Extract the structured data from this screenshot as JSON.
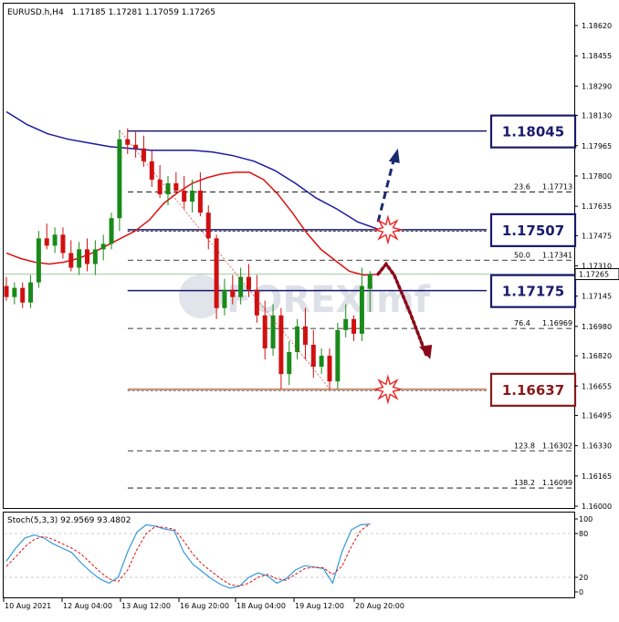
{
  "header": {
    "symbol": "EURUSD.h,H4",
    "ohlc": "1.17185 1.17281 1.17059 1.17265"
  },
  "current_price_label": "1.17265",
  "colors": {
    "bull": "#1a8a1a",
    "bear": "#d01010",
    "ma_fast": "#dd1111",
    "ma_slow": "#1a1aa0",
    "level_box": "#1a1a6e",
    "support_box": "#8a1a1a",
    "stoch_main": "#3399dd",
    "stoch_signal": "#dd1111",
    "up_arrow": "#1a2a6e",
    "down_arrow": "#8a0a1a",
    "burst": "#ee2222"
  },
  "levels": [
    {
      "label": "1.18045",
      "value": 1.18045,
      "kind": "resistance"
    },
    {
      "label": "1.17507",
      "value": 1.17507,
      "kind": "resistance"
    },
    {
      "label": "1.17175",
      "value": 1.17175,
      "kind": "pivot"
    },
    {
      "label": "1.16637",
      "value": 1.16637,
      "kind": "support"
    }
  ],
  "fibonacci": [
    {
      "label": "23.6",
      "price": "1.17713",
      "value": 1.17713
    },
    {
      "label": "50.0",
      "price": "1.17341",
      "value": 1.17341
    },
    {
      "label": "76.4",
      "price": "1.16969",
      "value": 1.16969
    },
    {
      "label": "123.8",
      "price": "1.16302",
      "value": 1.16302
    },
    {
      "label": "138.2",
      "price": "1.16099",
      "value": 1.16099
    }
  ],
  "watermark": "FOREXimf",
  "stochastic": {
    "label": "Stoch(5,3,3) 92.9569 93.4802",
    "ticks": [
      "100",
      "80",
      "20",
      "0"
    ],
    "main": [
      42,
      60,
      74,
      78,
      74,
      66,
      60,
      54,
      40,
      28,
      18,
      12,
      20,
      55,
      82,
      92,
      90,
      86,
      84,
      55,
      38,
      28,
      18,
      10,
      5,
      8,
      20,
      26,
      22,
      12,
      18,
      30,
      36,
      34,
      32,
      12,
      55,
      85,
      92,
      93
    ],
    "signal": [
      35,
      48,
      62,
      72,
      76,
      72,
      66,
      60,
      52,
      40,
      28,
      18,
      14,
      30,
      58,
      80,
      90,
      88,
      86,
      70,
      52,
      38,
      28,
      18,
      10,
      8,
      12,
      20,
      24,
      18,
      16,
      24,
      32,
      34,
      33,
      24,
      35,
      62,
      84,
      93.5
    ]
  },
  "chart_data": {
    "type": "candlestick",
    "title": "EURUSD.h,H4",
    "ylim": [
      1.15985,
      1.18715
    ],
    "y_ticks": [
      "1.18620",
      "1.18455",
      "1.18290",
      "1.18130",
      "1.17965",
      "1.17800",
      "1.17635",
      "1.17475",
      "1.17310",
      "1.17145",
      "1.16980",
      "1.16820",
      "1.16655",
      "1.16495",
      "1.16330",
      "1.16165",
      "1.16000"
    ],
    "x_ticks": [
      "10 Aug 2021",
      "12 Aug 04:00",
      "13 Aug 12:00",
      "16 Aug 20:00",
      "18 Aug 04:00",
      "19 Aug 12:00",
      "20 Aug 20:00"
    ],
    "candles": [
      [
        1.172,
        1.1725,
        1.1712,
        1.1714
      ],
      [
        1.1714,
        1.1722,
        1.171,
        1.1719
      ],
      [
        1.1719,
        1.1722,
        1.1708,
        1.1711
      ],
      [
        1.1711,
        1.1726,
        1.1708,
        1.1722
      ],
      [
        1.1722,
        1.175,
        1.1719,
        1.1746
      ],
      [
        1.1746,
        1.1754,
        1.174,
        1.1742
      ],
      [
        1.1742,
        1.1752,
        1.1738,
        1.1748
      ],
      [
        1.1748,
        1.1752,
        1.1735,
        1.1738
      ],
      [
        1.1738,
        1.1745,
        1.1728,
        1.173
      ],
      [
        1.173,
        1.1744,
        1.1726,
        1.174
      ],
      [
        1.174,
        1.1746,
        1.1728,
        1.1732
      ],
      [
        1.1732,
        1.1745,
        1.1726,
        1.174
      ],
      [
        1.174,
        1.1748,
        1.1734,
        1.1743
      ],
      [
        1.1743,
        1.176,
        1.174,
        1.1757
      ],
      [
        1.1757,
        1.1805,
        1.175,
        1.18
      ],
      [
        1.18,
        1.1806,
        1.1792,
        1.1797
      ],
      [
        1.1797,
        1.1804,
        1.179,
        1.1795
      ],
      [
        1.1795,
        1.1802,
        1.1785,
        1.1788
      ],
      [
        1.1788,
        1.1794,
        1.1774,
        1.1778
      ],
      [
        1.1778,
        1.1786,
        1.1768,
        1.177
      ],
      [
        1.177,
        1.178,
        1.1764,
        1.1776
      ],
      [
        1.1776,
        1.1782,
        1.177,
        1.1772
      ],
      [
        1.1772,
        1.178,
        1.1762,
        1.1766
      ],
      [
        1.1766,
        1.1778,
        1.176,
        1.1772
      ],
      [
        1.1772,
        1.1782,
        1.1758,
        1.176
      ],
      [
        1.176,
        1.1764,
        1.174,
        1.1746
      ],
      [
        1.1746,
        1.1748,
        1.1702,
        1.1708
      ],
      [
        1.1708,
        1.1724,
        1.1704,
        1.1718
      ],
      [
        1.1718,
        1.1726,
        1.171,
        1.1714
      ],
      [
        1.1714,
        1.173,
        1.171,
        1.1725
      ],
      [
        1.1725,
        1.1732,
        1.1714,
        1.1718
      ],
      [
        1.1718,
        1.1726,
        1.17,
        1.1704
      ],
      [
        1.1704,
        1.1712,
        1.168,
        1.1686
      ],
      [
        1.1686,
        1.171,
        1.1682,
        1.1704
      ],
      [
        1.1704,
        1.1708,
        1.1664,
        1.1672
      ],
      [
        1.1672,
        1.169,
        1.1666,
        1.1684
      ],
      [
        1.1684,
        1.1702,
        1.168,
        1.1698
      ],
      [
        1.1698,
        1.1708,
        1.168,
        1.1688
      ],
      [
        1.1688,
        1.1696,
        1.167,
        1.1676
      ],
      [
        1.1676,
        1.1686,
        1.1672,
        1.1682
      ],
      [
        1.1682,
        1.1686,
        1.1664,
        1.1668
      ],
      [
        1.1668,
        1.17,
        1.1664,
        1.1696
      ],
      [
        1.1696,
        1.171,
        1.1692,
        1.1702
      ],
      [
        1.1702,
        1.1704,
        1.169,
        1.1694
      ],
      [
        1.1694,
        1.173,
        1.169,
        1.172
      ],
      [
        1.17185,
        1.17281,
        1.17059,
        1.17265
      ]
    ],
    "ma_fast": [
      1.1738,
      1.1735,
      1.1733,
      1.1732,
      1.1733,
      1.1735,
      1.1738,
      1.1742,
      1.1746,
      1.175,
      1.1756,
      1.1765,
      1.1771,
      1.1776,
      1.1779,
      1.1781,
      1.1782,
      1.1782,
      1.1778,
      1.177,
      1.176,
      1.1749,
      1.174,
      1.1734,
      1.1728,
      1.1726,
      1.17265
    ],
    "ma_slow": [
      1.1815,
      1.1808,
      1.1803,
      1.18,
      1.1798,
      1.1796,
      1.1795,
      1.1794,
      1.1794,
      1.1794,
      1.1793,
      1.1791,
      1.1788,
      1.1783,
      1.1776,
      1.1768,
      1.1762,
      1.1755,
      1.1751
    ],
    "ma_fast_span": [
      0,
      46
    ],
    "ma_slow_span": [
      0,
      46
    ],
    "level_line_start_index": [
      15,
      15,
      15,
      15
    ],
    "down_projection": [
      [
        46,
        1.17265
      ],
      [
        47,
        1.1732
      ],
      [
        48,
        1.1726
      ],
      [
        50,
        1.1705
      ],
      [
        52,
        1.1682
      ]
    ],
    "up_projection": [
      [
        46,
        1.1755
      ],
      [
        48,
        1.179
      ]
    ]
  }
}
